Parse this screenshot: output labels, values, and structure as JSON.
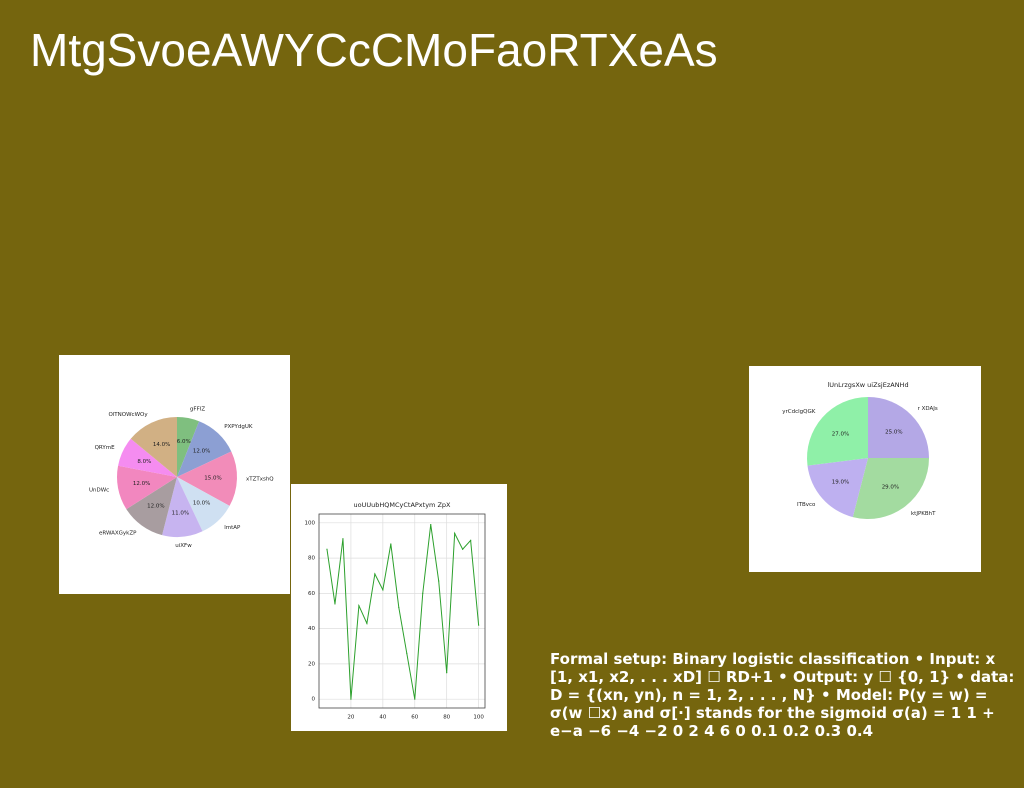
{
  "slide": {
    "title": "MtgSvoeAWYCcCMoFaoRTXeAs",
    "caption": "Formal setup: Binary logistic classification • Input: x [1, x1, x2, . . . xD] ☐ RD+1 • Output: y ☐ {0, 1} • data: D = {(xn, yn), n = 1, 2, . . . , N} • Model: P(y = w) = σ(w ☐x) and σ[·] stands for the sigmoid σ(a) = 1 1 + e−a −6 −4 −2 0 2 4 6 0 0.1 0.2 0.3 0.4",
    "colors": {
      "background": "#75650e",
      "text": "#ffffff"
    }
  },
  "chart_data": [
    {
      "id": "pie1",
      "type": "pie",
      "title": "",
      "categories": [
        "gFFIZ",
        "PXPYdgUK",
        "xTZTxshQ",
        "lmtAP",
        "uiXFw",
        "eRWAXGykZP",
        "UnDWc",
        "QRYmE",
        "OlTNOWcWOy"
      ],
      "values": [
        6.0,
        12.0,
        15.0,
        10.0,
        11.0,
        12.0,
        12.0,
        8.0,
        14.0
      ],
      "labels": [
        "6.0%",
        "12.0%",
        "15.0%",
        "10.0%",
        "11.0%",
        "12.0%",
        "12.0%",
        "8.0%",
        "14.0%"
      ],
      "colors": [
        "#7fbf7f",
        "#8c9fd3",
        "#f28cb9",
        "#cfe0f2",
        "#c7b4f0",
        "#a89da0",
        "#f287bf",
        "#f58cf0",
        "#d1b084"
      ]
    },
    {
      "id": "line1",
      "type": "line",
      "title": "uoUUubHQMCyCtAPxtym ZpX",
      "x": [
        5,
        10,
        15,
        20,
        25,
        30,
        35,
        40,
        45,
        50,
        55,
        60,
        65,
        70,
        75,
        80,
        85,
        90,
        95,
        100
      ],
      "values": [
        85,
        54,
        91,
        0,
        53,
        43,
        71,
        62,
        88,
        52,
        26,
        0,
        60,
        99,
        67,
        15,
        94,
        85,
        90,
        42
      ],
      "color": "#2ca02c",
      "xlim": [
        0,
        104
      ],
      "ylim": [
        -5,
        105
      ],
      "xticks": [
        20,
        40,
        60,
        80,
        100
      ],
      "yticks": [
        0,
        20,
        40,
        60,
        80,
        100
      ],
      "grid": true
    },
    {
      "id": "pie2",
      "type": "pie",
      "title": "lUnLrzgsXw uiZsjEzANHd",
      "categories": [
        "r XDAJs",
        "ktJPKBhT",
        "ITBvco",
        "yrCdclgQGK"
      ],
      "values": [
        25.0,
        29.0,
        19.0,
        27.0
      ],
      "labels": [
        "25.0%",
        "29.0%",
        "19.0%",
        "27.0%"
      ],
      "colors": [
        "#b4a8e6",
        "#a3dba0",
        "#beb0f0",
        "#8ff0a8"
      ]
    }
  ]
}
